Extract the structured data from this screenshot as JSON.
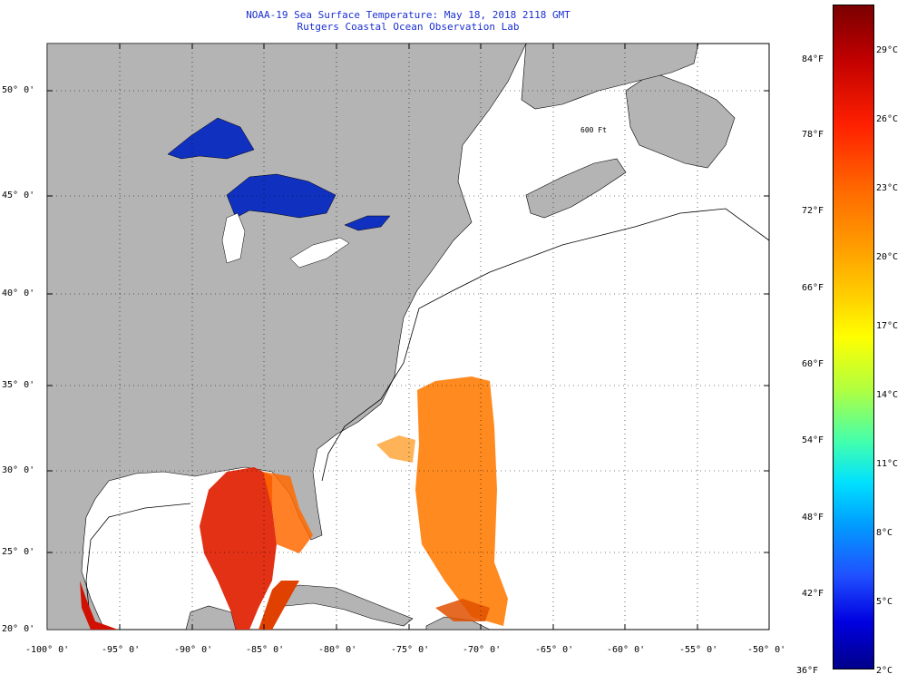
{
  "title": "NOAA-19 Sea Surface Temperature:  May 18, 2018 2118 GMT",
  "subtitle": "Rutgers Coastal Ocean Observation Lab",
  "lat_labels": [
    "50° 0'",
    "45° 0'",
    "40° 0'",
    "35° 0'",
    "30° 0'",
    "25° 0'",
    "20° 0'"
  ],
  "lon_labels": [
    "-100° 0'",
    "-95° 0'",
    "-90° 0'",
    "-85° 0'",
    "-80° 0'",
    "-75° 0'",
    "-70° 0'",
    "-65° 0'",
    "-60° 0'",
    "-55° 0'",
    "-50° 0'"
  ],
  "isobath_label": "600 Ft",
  "colorbar": {
    "fahrenheit": [
      "84°F",
      "78°F",
      "72°F",
      "66°F",
      "60°F",
      "54°F",
      "48°F",
      "42°F",
      "36°F"
    ],
    "celsius": [
      "29°C",
      "26°C",
      "23°C",
      "20°C",
      "17°C",
      "14°C",
      "11°C",
      "8°C",
      "5°C",
      "2°C"
    ]
  },
  "colors": {
    "land": "#b4b4b4",
    "title": "#1a2fd0",
    "warm": "#e02000",
    "lake": "#1030c0"
  }
}
